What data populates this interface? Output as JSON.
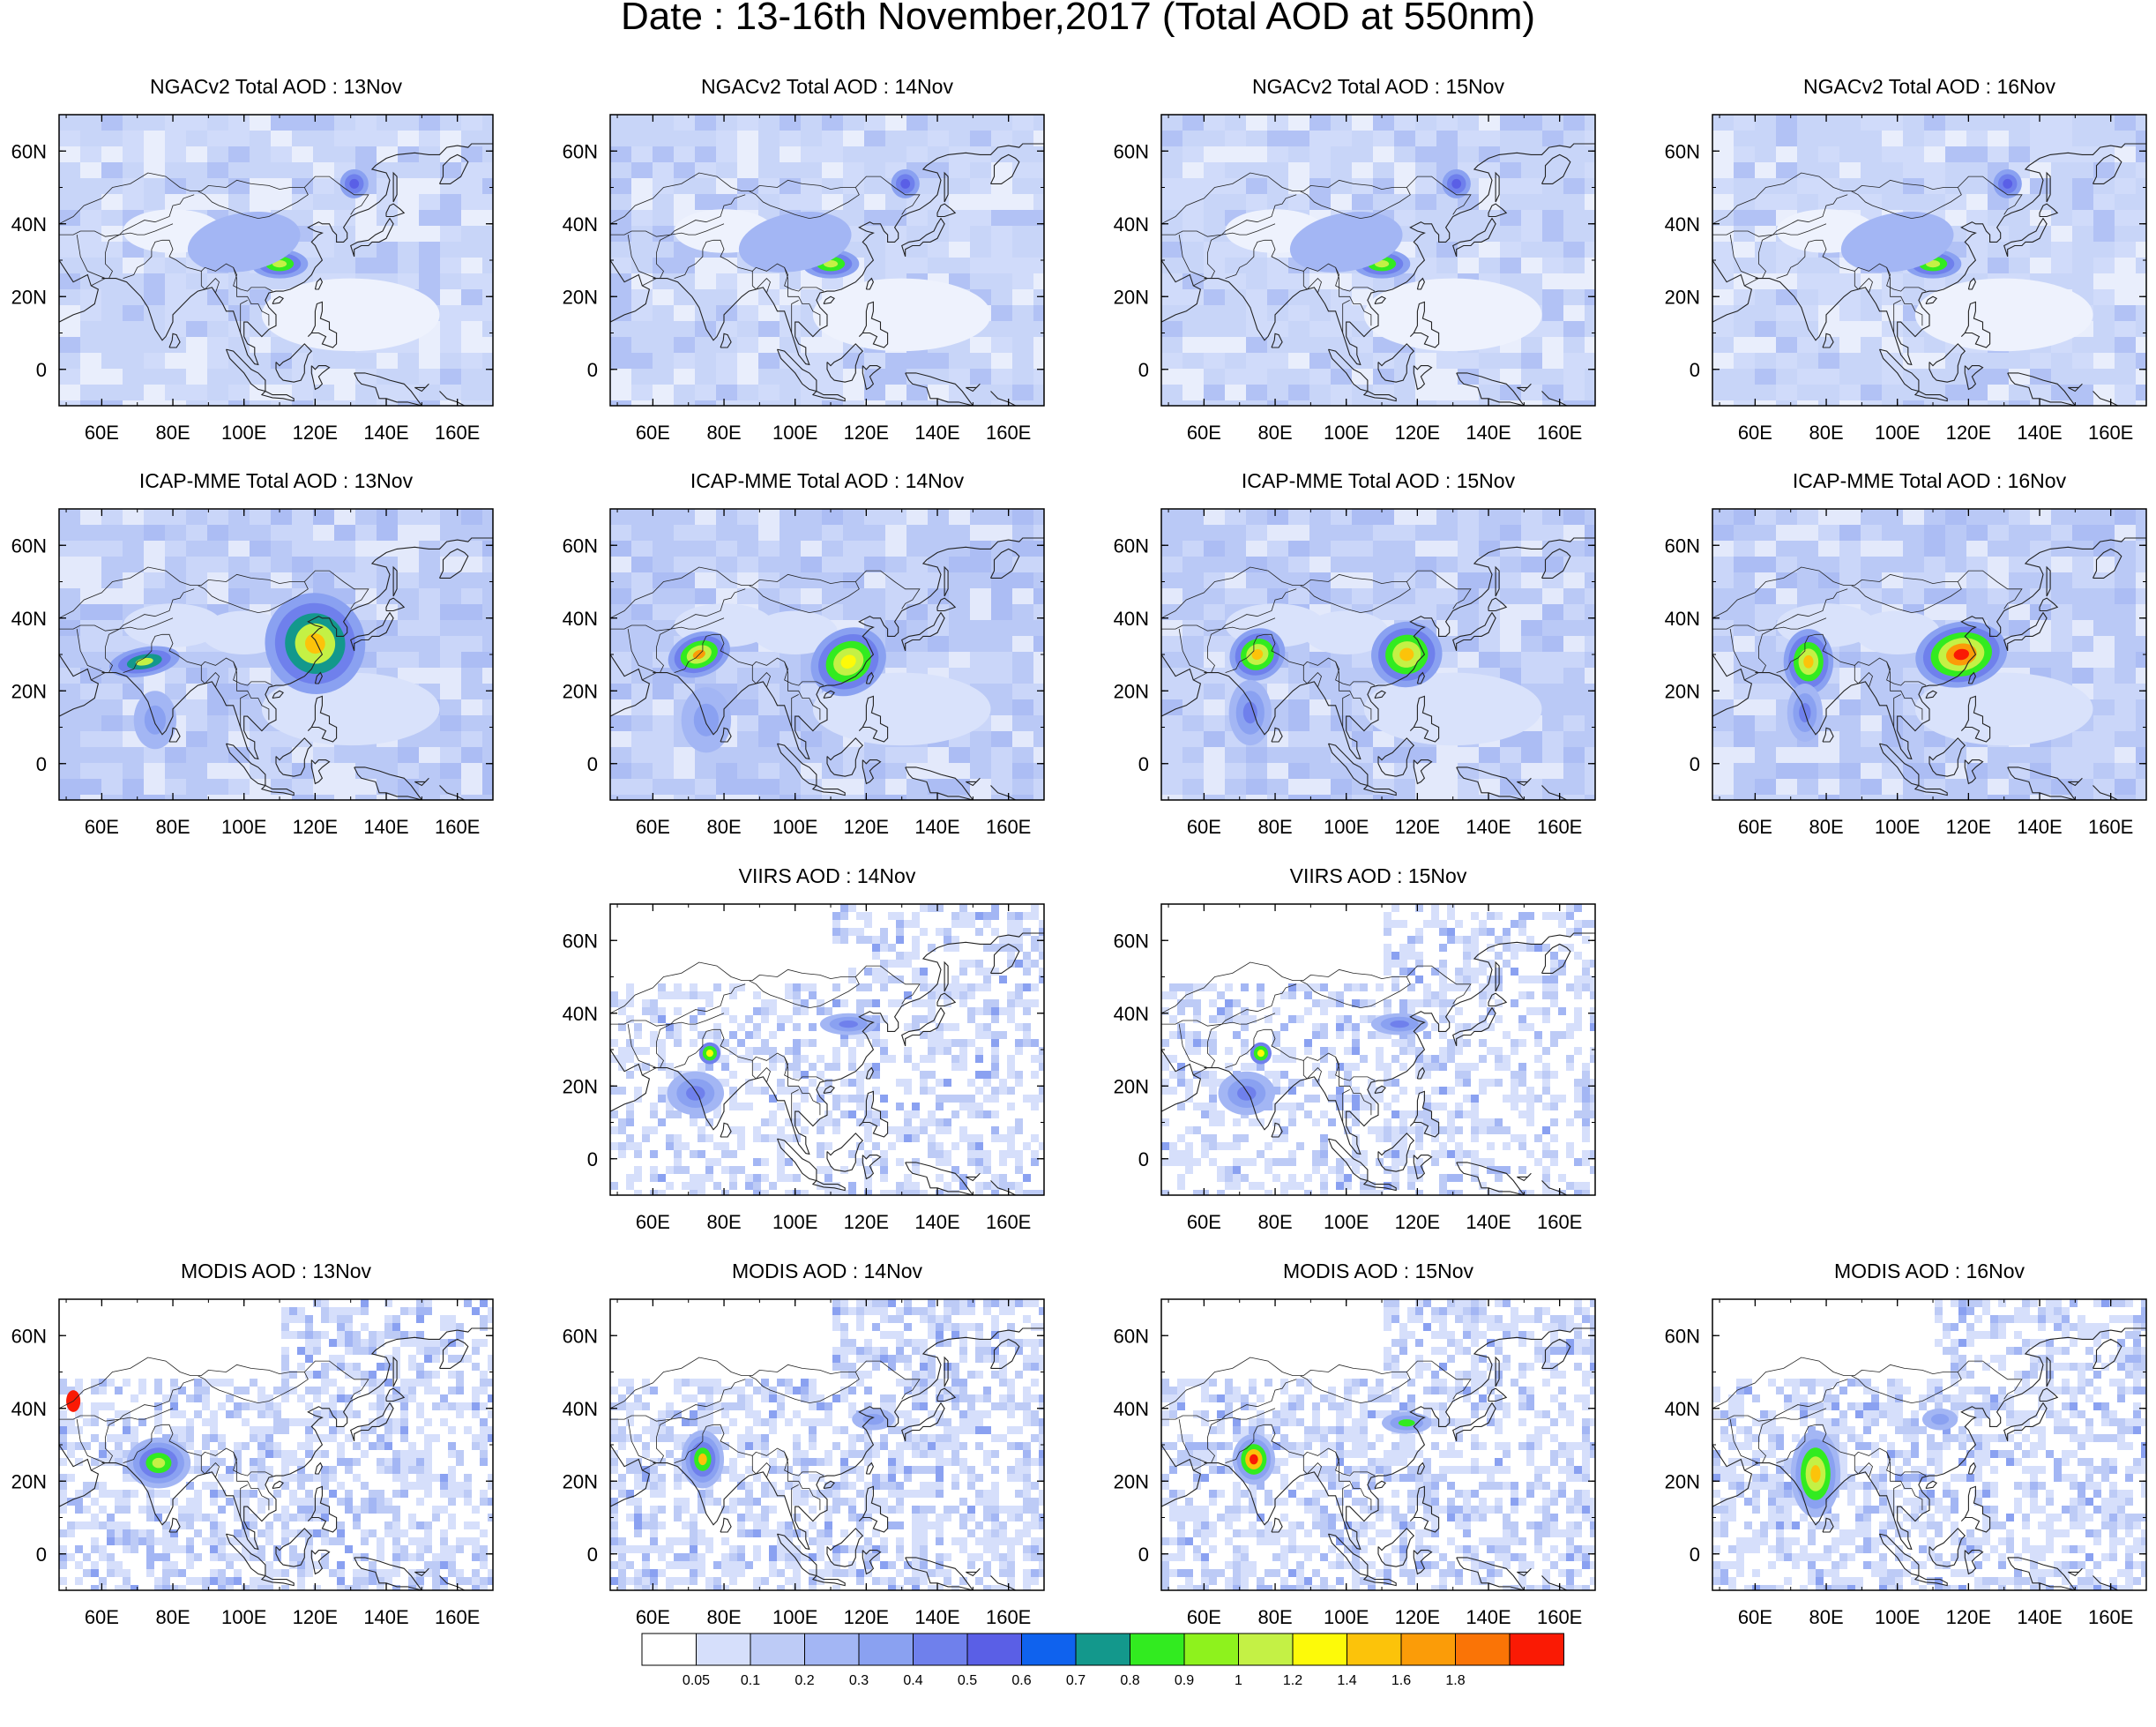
{
  "title": "Date : 13-16th November,2017 (Total AOD at 550nm)",
  "axes": {
    "x_ticks": [
      "60E",
      "80E",
      "100E",
      "120E",
      "140E",
      "160E"
    ],
    "y_ticks": [
      "60N",
      "40N",
      "20N",
      "0"
    ],
    "lon_range": [
      48,
      170
    ],
    "lat_range": [
      -10,
      70
    ]
  },
  "panels": [
    {
      "row": 0,
      "col": 0,
      "title": "NGACv2 Total AOD : 13Nov",
      "style": "model",
      "intensity": 0.25
    },
    {
      "row": 0,
      "col": 1,
      "title": "NGACv2 Total AOD : 14Nov",
      "style": "model",
      "intensity": 0.22
    },
    {
      "row": 0,
      "col": 2,
      "title": "NGACv2 Total AOD : 15Nov",
      "style": "model",
      "intensity": 0.22
    },
    {
      "row": 0,
      "col": 3,
      "title": "NGACv2 Total AOD : 16Nov",
      "style": "model",
      "intensity": 0.2
    },
    {
      "row": 1,
      "col": 0,
      "title": "ICAP-MME Total AOD : 13Nov",
      "style": "icap",
      "intensity": 0.9
    },
    {
      "row": 1,
      "col": 1,
      "title": "ICAP-MME Total AOD : 14Nov",
      "style": "icap",
      "intensity": 0.85
    },
    {
      "row": 1,
      "col": 2,
      "title": "ICAP-MME Total AOD : 15Nov",
      "style": "icap",
      "intensity": 0.85
    },
    {
      "row": 1,
      "col": 3,
      "title": "ICAP-MME Total AOD : 16Nov",
      "style": "icap",
      "intensity": 1.0
    },
    {
      "row": 2,
      "col": 1,
      "title": "VIIRS AOD : 14Nov",
      "style": "viirs",
      "intensity": 0.6
    },
    {
      "row": 2,
      "col": 2,
      "title": "VIIRS AOD : 15Nov",
      "style": "viirs",
      "intensity": 0.6
    },
    {
      "row": 3,
      "col": 0,
      "title": "MODIS AOD : 13Nov",
      "style": "modis",
      "intensity": 0.7
    },
    {
      "row": 3,
      "col": 1,
      "title": "MODIS AOD : 14Nov",
      "style": "modis",
      "intensity": 0.75
    },
    {
      "row": 3,
      "col": 2,
      "title": "MODIS AOD : 15Nov",
      "style": "modis",
      "intensity": 0.85
    },
    {
      "row": 3,
      "col": 3,
      "title": "MODIS AOD : 16Nov",
      "style": "modis",
      "intensity": 0.85
    }
  ],
  "colorbar": {
    "labels": [
      "0.05",
      "0.1",
      "0.2",
      "0.3",
      "0.4",
      "0.5",
      "0.6",
      "0.7",
      "0.8",
      "0.9",
      "1",
      "1.2",
      "1.4",
      "1.6",
      "1.8"
    ],
    "colors": [
      "#ffffff",
      "#d6dffb",
      "#bdcbf6",
      "#a3b6f4",
      "#8aa1f1",
      "#6f80ec",
      "#5a5fe6",
      "#0f62ee",
      "#13988c",
      "#32eb20",
      "#8ef21d",
      "#c4f145",
      "#fdfa09",
      "#fcc30a",
      "#fb9c08",
      "#fa7406",
      "#fa1a04"
    ]
  }
}
